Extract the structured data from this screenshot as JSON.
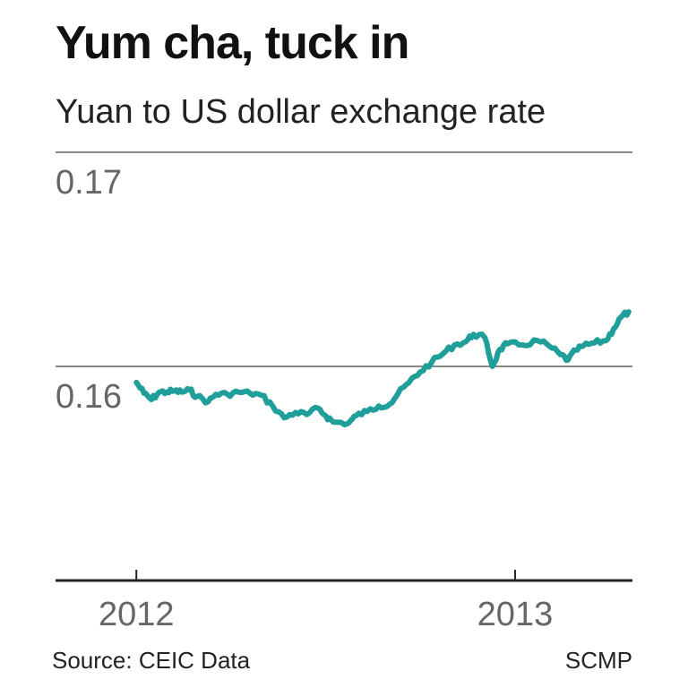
{
  "title": "Yum cha, tuck in",
  "subtitle": "Yuan to US dollar exchange rate",
  "source": "Source: CEIC Data",
  "credit": "SCMP",
  "colors": {
    "line": "#1f9e9a",
    "grid": "#888888",
    "axis": "#222222",
    "tick_text": "#666666"
  },
  "chart_data": {
    "type": "line",
    "title": "Yum cha, tuck in",
    "subtitle": "Yuan to US dollar exchange rate",
    "xlabel": "",
    "ylabel": "",
    "ylim": [
      0.15,
      0.17
    ],
    "xlim": [
      2011.99,
      2013.31
    ],
    "yticks": [
      0.16,
      0.17
    ],
    "ytick_labels": [
      "0.16",
      "0.17"
    ],
    "xticks": [
      2012,
      2013
    ],
    "xtick_labels": [
      "2012",
      "2013"
    ],
    "grid": true,
    "series": [
      {
        "points": [
          [
            2012.0,
            0.15925
          ],
          [
            2012.02,
            0.15875
          ],
          [
            2012.04,
            0.15845
          ],
          [
            2012.06,
            0.1588
          ],
          [
            2012.08,
            0.1588
          ],
          [
            2012.1,
            0.15885
          ],
          [
            2012.12,
            0.1588
          ],
          [
            2012.14,
            0.1589
          ],
          [
            2012.16,
            0.1586
          ],
          [
            2012.19,
            0.15835
          ],
          [
            2012.21,
            0.1587
          ],
          [
            2012.24,
            0.1587
          ],
          [
            2012.27,
            0.1588
          ],
          [
            2012.3,
            0.15875
          ],
          [
            2012.33,
            0.15865
          ],
          [
            2012.36,
            0.15815
          ],
          [
            2012.39,
            0.1576
          ],
          [
            2012.42,
            0.15785
          ],
          [
            2012.45,
            0.15775
          ],
          [
            2012.48,
            0.15805
          ],
          [
            2012.5,
            0.1577
          ],
          [
            2012.52,
            0.1574
          ],
          [
            2012.56,
            0.15735
          ],
          [
            2012.58,
            0.1577
          ],
          [
            2012.61,
            0.1579
          ],
          [
            2012.64,
            0.15815
          ],
          [
            2012.67,
            0.15825
          ],
          [
            2012.69,
            0.1587
          ],
          [
            2012.72,
            0.15925
          ],
          [
            2012.75,
            0.15975
          ],
          [
            2012.78,
            0.1602
          ],
          [
            2012.81,
            0.1606
          ],
          [
            2012.84,
            0.161
          ],
          [
            2012.87,
            0.16115
          ],
          [
            2012.89,
            0.1615
          ],
          [
            2012.92,
            0.16135
          ],
          [
            2012.94,
            0.16
          ],
          [
            2012.96,
            0.1608
          ],
          [
            2012.98,
            0.16105
          ],
          [
            2013.02,
            0.161
          ],
          [
            2013.06,
            0.1612
          ],
          [
            2013.09,
            0.16095
          ],
          [
            2013.12,
            0.16055
          ],
          [
            2013.14,
            0.1603
          ],
          [
            2013.16,
            0.16075
          ],
          [
            2013.18,
            0.16095
          ],
          [
            2013.21,
            0.1611
          ],
          [
            2013.24,
            0.1612
          ],
          [
            2013.26,
            0.16175
          ],
          [
            2013.28,
            0.1623
          ],
          [
            2013.3,
            0.16255
          ]
        ]
      }
    ]
  }
}
